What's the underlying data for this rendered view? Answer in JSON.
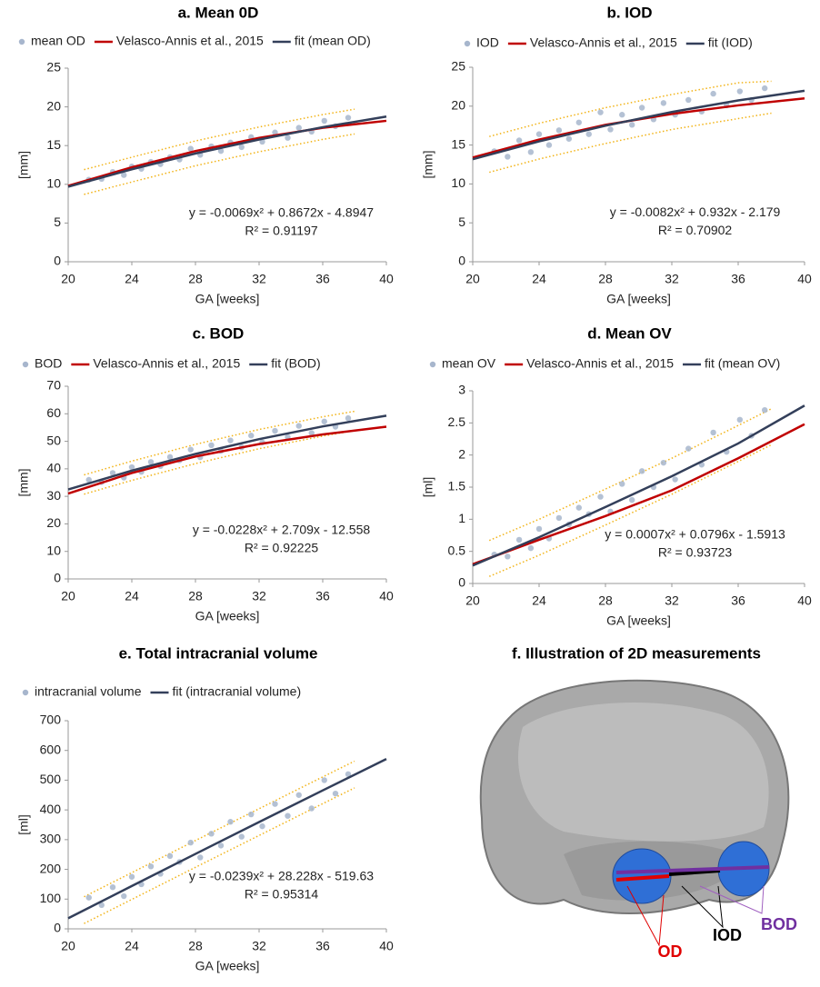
{
  "chart_data": [
    {
      "type": "scatter",
      "title": "a. Mean 0D",
      "x_label": "GA [weeks]",
      "y_label": "[mm]",
      "xlim": [
        20,
        40
      ],
      "ylim": [
        0,
        25
      ],
      "xticks": [
        20,
        24,
        28,
        32,
        36,
        40
      ],
      "yticks": [
        0,
        5,
        10,
        15,
        20,
        25
      ],
      "annotations": [
        "y = -0.0069x² + 0.8672x - 4.8947",
        "R² = 0.91197"
      ],
      "series": [
        {
          "name": "mean OD",
          "style": "markers",
          "color": "#a7b6cd",
          "x": [
            21.3,
            22.1,
            22.8,
            23.5,
            24.0,
            24.6,
            25.2,
            25.8,
            26.4,
            27.0,
            27.7,
            28.3,
            29.0,
            29.6,
            30.2,
            30.9,
            31.5,
            32.2,
            33.0,
            33.8,
            34.5,
            35.3,
            36.1,
            36.8,
            37.6
          ],
          "values": [
            10.6,
            10.7,
            11.6,
            11.2,
            12.3,
            12.0,
            12.9,
            12.6,
            13.5,
            13.2,
            14.6,
            13.8,
            14.9,
            14.3,
            15.4,
            14.8,
            16.1,
            15.5,
            16.7,
            16.0,
            17.3,
            16.8,
            18.2,
            17.5,
            18.6
          ]
        },
        {
          "name": "Velasco-Annis et al., 2015",
          "style": "line",
          "color": "#c00000",
          "x": [
            20,
            24,
            28,
            32,
            36,
            40
          ],
          "values": [
            9.8,
            12.2,
            14.3,
            16.0,
            17.3,
            18.2
          ]
        },
        {
          "name": "fit (mean OD)",
          "style": "line",
          "color": "#333f5a",
          "x": [
            20,
            24,
            28,
            32,
            36,
            40
          ],
          "values": [
            9.69,
            11.94,
            13.98,
            15.79,
            17.38,
            18.75
          ]
        },
        {
          "style": "dotted",
          "color": "#f2b316",
          "x": [
            21,
            24,
            28,
            32,
            36,
            38
          ],
          "values": [
            11.9,
            13.5,
            15.6,
            17.4,
            19.0,
            19.7
          ]
        },
        {
          "style": "dotted",
          "color": "#f2b316",
          "x": [
            21,
            24,
            28,
            32,
            36,
            38
          ],
          "values": [
            8.7,
            10.3,
            12.4,
            14.2,
            15.8,
            16.5
          ]
        }
      ]
    },
    {
      "type": "scatter",
      "title": "b. IOD",
      "x_label": "GA [weeks]",
      "y_label": "[mm]",
      "xlim": [
        20,
        40
      ],
      "ylim": [
        0,
        25
      ],
      "xticks": [
        20,
        24,
        28,
        32,
        36,
        40
      ],
      "yticks": [
        0,
        5,
        10,
        15,
        20,
        25
      ],
      "annotations": [
        "y = -0.0082x² + 0.932x - 2.179",
        "R² = 0.70902"
      ],
      "series": [
        {
          "name": "IOD",
          "style": "markers",
          "color": "#a7b6cd",
          "x": [
            21.3,
            22.1,
            22.8,
            23.5,
            24.0,
            24.6,
            25.2,
            25.8,
            26.4,
            27.0,
            27.7,
            28.3,
            29.0,
            29.6,
            30.2,
            30.9,
            31.5,
            32.2,
            33.0,
            33.8,
            34.5,
            35.3,
            36.1,
            36.8,
            37.6
          ],
          "values": [
            14.2,
            13.5,
            15.6,
            14.1,
            16.4,
            15.0,
            16.9,
            15.8,
            17.9,
            16.4,
            19.2,
            17.0,
            18.9,
            17.6,
            19.8,
            18.3,
            20.4,
            18.9,
            20.8,
            19.3,
            21.6,
            20.1,
            21.9,
            20.8,
            22.3
          ]
        },
        {
          "name": "Velasco-Annis et al., 2015",
          "style": "line",
          "color": "#c00000",
          "x": [
            20,
            24,
            28,
            32,
            36,
            40
          ],
          "values": [
            13.4,
            15.7,
            17.6,
            19.0,
            20.1,
            21.0
          ]
        },
        {
          "name": "fit (IOD)",
          "style": "line",
          "color": "#333f5a",
          "x": [
            20,
            24,
            28,
            32,
            36,
            40
          ],
          "values": [
            13.18,
            15.47,
            17.49,
            19.25,
            20.74,
            21.98
          ]
        },
        {
          "style": "dotted",
          "color": "#f2b316",
          "x": [
            21,
            24,
            28,
            32,
            36,
            38
          ],
          "values": [
            16.1,
            17.8,
            19.8,
            21.5,
            23.0,
            23.2
          ]
        },
        {
          "style": "dotted",
          "color": "#f2b316",
          "x": [
            21,
            24,
            28,
            32,
            36,
            38
          ],
          "values": [
            11.5,
            13.2,
            15.2,
            17.0,
            18.4,
            19.1
          ]
        }
      ]
    },
    {
      "type": "scatter",
      "title": "c. BOD",
      "x_label": "GA [weeks]",
      "y_label": "[mm]",
      "xlim": [
        20,
        40
      ],
      "ylim": [
        0,
        70
      ],
      "xticks": [
        20,
        24,
        28,
        32,
        36,
        40
      ],
      "yticks": [
        0,
        10,
        20,
        30,
        40,
        50,
        60,
        70
      ],
      "annotations": [
        "y = -0.0228x² + 2.709x - 12.558",
        "R² = 0.92225"
      ],
      "series": [
        {
          "name": "BOD",
          "style": "markers",
          "color": "#a7b6cd",
          "x": [
            21.3,
            22.1,
            22.8,
            23.5,
            24.0,
            24.6,
            25.2,
            25.8,
            26.4,
            27.0,
            27.7,
            28.3,
            29.0,
            29.6,
            30.2,
            30.9,
            31.5,
            32.2,
            33.0,
            33.8,
            34.5,
            35.3,
            36.1,
            36.8,
            37.6
          ],
          "values": [
            36.0,
            35.2,
            38.5,
            36.8,
            40.6,
            38.9,
            42.5,
            41.0,
            44.3,
            43.1,
            47.0,
            44.2,
            48.6,
            46.5,
            50.3,
            47.8,
            52.1,
            49.6,
            53.8,
            51.5,
            55.6,
            53.0,
            57.2,
            55.3,
            58.4
          ]
        },
        {
          "name": "Velasco-Annis et al., 2015",
          "style": "line",
          "color": "#c00000",
          "x": [
            20,
            24,
            28,
            32,
            36,
            40
          ],
          "values": [
            31,
            38.5,
            44.5,
            49,
            52.5,
            55.3
          ]
        },
        {
          "name": "fit (BOD)",
          "style": "line",
          "color": "#333f5a",
          "x": [
            20,
            24,
            28,
            32,
            36,
            40
          ],
          "values": [
            32.5,
            39.33,
            45.41,
            50.78,
            55.41,
            59.32
          ]
        },
        {
          "style": "dotted",
          "color": "#f2b316",
          "x": [
            21,
            24,
            28,
            32,
            36,
            38
          ],
          "values": [
            37.8,
            42.8,
            48.9,
            54.3,
            58.9,
            60.9
          ]
        },
        {
          "style": "dotted",
          "color": "#f2b316",
          "x": [
            21,
            24,
            28,
            32,
            36,
            38
          ],
          "values": [
            30.8,
            35.8,
            41.9,
            47.3,
            51.9,
            53.9
          ]
        }
      ]
    },
    {
      "type": "scatter",
      "title": "d. Mean OV",
      "x_label": "GA [weeks]",
      "y_label": "[ml]",
      "xlim": [
        20,
        40
      ],
      "ylim": [
        0,
        3
      ],
      "xticks": [
        20,
        24,
        28,
        32,
        36,
        40
      ],
      "yticks": [
        0,
        0.5,
        1,
        1.5,
        2,
        2.5,
        3
      ],
      "annotations": [
        "y = 0.0007x² + 0.0796x - 1.5913",
        "R² = 0.93723"
      ],
      "series": [
        {
          "name": "mean OV",
          "style": "markers",
          "color": "#a7b6cd",
          "x": [
            21.3,
            22.1,
            22.8,
            23.5,
            24.0,
            24.6,
            25.2,
            25.8,
            26.4,
            27.0,
            27.7,
            28.3,
            29.0,
            29.6,
            30.2,
            30.9,
            31.5,
            32.2,
            33.0,
            33.8,
            34.5,
            35.3,
            36.1,
            36.8,
            37.6
          ],
          "values": [
            0.45,
            0.42,
            0.68,
            0.55,
            0.85,
            0.7,
            1.02,
            0.92,
            1.18,
            1.08,
            1.35,
            1.12,
            1.55,
            1.3,
            1.75,
            1.5,
            1.88,
            1.62,
            2.1,
            1.85,
            2.35,
            2.05,
            2.55,
            2.3,
            2.7
          ]
        },
        {
          "name": "Velasco-Annis et al., 2015",
          "style": "line",
          "color": "#c00000",
          "x": [
            20,
            24,
            28,
            32,
            36,
            40
          ],
          "values": [
            0.3,
            0.68,
            1.05,
            1.45,
            1.95,
            2.48
          ]
        },
        {
          "name": "fit (mean OV)",
          "style": "line",
          "color": "#333f5a",
          "x": [
            20,
            24,
            28,
            32,
            36,
            40
          ],
          "values": [
            0.28,
            0.72,
            1.19,
            1.67,
            2.18,
            2.77
          ]
        },
        {
          "style": "dotted",
          "color": "#f2b316",
          "x": [
            21,
            24,
            28,
            32,
            36,
            38
          ],
          "values": [
            0.67,
            1.0,
            1.47,
            1.95,
            2.46,
            2.72
          ]
        },
        {
          "style": "dotted",
          "color": "#f2b316",
          "x": [
            21,
            24,
            28,
            32,
            36,
            38
          ],
          "values": [
            0.11,
            0.44,
            0.91,
            1.39,
            1.9,
            2.16
          ]
        }
      ]
    },
    {
      "type": "scatter",
      "title": "e. Total intracranial volume",
      "x_label": "GA [weeks]",
      "y_label": "[ml]",
      "xlim": [
        20,
        40
      ],
      "ylim": [
        0,
        700
      ],
      "xticks": [
        20,
        24,
        28,
        32,
        36,
        40
      ],
      "yticks": [
        0,
        100,
        200,
        300,
        400,
        500,
        600,
        700
      ],
      "annotations": [
        "y = -0.0239x² + 28.228x - 519.63",
        "R² = 0.95314"
      ],
      "series": [
        {
          "name": "intracranial volume",
          "style": "markers",
          "color": "#a7b6cd",
          "x": [
            21.3,
            22.1,
            22.8,
            23.5,
            24.0,
            24.6,
            25.2,
            25.8,
            26.4,
            27.0,
            27.7,
            28.3,
            29.0,
            29.6,
            30.2,
            30.9,
            31.5,
            32.2,
            33.0,
            33.8,
            34.5,
            35.3,
            36.1,
            36.8,
            37.6
          ],
          "values": [
            105,
            80,
            140,
            110,
            175,
            150,
            210,
            185,
            245,
            225,
            290,
            240,
            320,
            280,
            360,
            310,
            385,
            345,
            420,
            380,
            450,
            405,
            500,
            455,
            520
          ]
        },
        {
          "name": "fit (intracranial volume)",
          "style": "line",
          "color": "#333f5a",
          "x": [
            20,
            24,
            28,
            32,
            36,
            40
          ],
          "values": [
            35.4,
            144.1,
            252,
            359.2,
            465.6,
            571.2
          ]
        },
        {
          "style": "dotted",
          "color": "#f2b316",
          "x": [
            21,
            24,
            28,
            32,
            36,
            38
          ],
          "values": [
            108,
            189,
            297,
            404,
            511,
            564
          ]
        },
        {
          "style": "dotted",
          "color": "#f2b316",
          "x": [
            21,
            24,
            28,
            32,
            36,
            38
          ],
          "values": [
            18,
            99,
            207,
            314,
            421,
            474
          ]
        }
      ]
    }
  ],
  "illustration": {
    "title": "f. Illustration of 2D measurements",
    "labels": [
      "OD",
      "IOD",
      "BOD"
    ]
  }
}
